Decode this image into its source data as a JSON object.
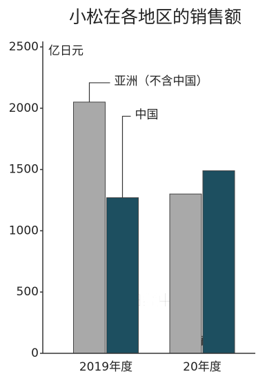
{
  "chart_data": {
    "type": "bar",
    "title": "小松在各地区的销售额",
    "y_label": "亿日元",
    "categories": [
      "2019年度",
      "20年度"
    ],
    "series": [
      {
        "name": "亚洲（不含中国）",
        "color": "#a9a9a9",
        "values": [
          2050,
          1300
        ]
      },
      {
        "name": "中国",
        "color": "#1d4f60",
        "values": [
          1270,
          1490
        ]
      }
    ],
    "ylim": [
      0,
      2500
    ],
    "yticks": [
      0,
      500,
      1000,
      1500,
      2000,
      2500
    ],
    "annotation": "预计",
    "watermark": "日经中文网"
  }
}
